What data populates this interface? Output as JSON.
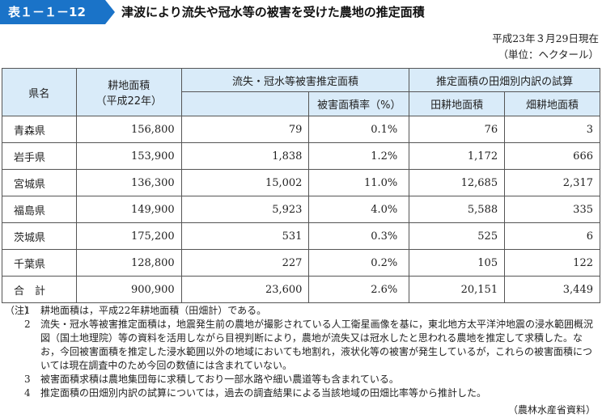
{
  "title": {
    "number": "表１－１－12",
    "text": "津波により流失や冠水等の被害を受けた農地の推定面積"
  },
  "meta": {
    "date": "平成23年３月29日現在",
    "unit": "（単位：ヘクタール）"
  },
  "table": {
    "headers": {
      "pref": "県名",
      "farmland": "耕地面積",
      "farmland_sub": "（平成22年）",
      "damage_group": "流失・冠水等被害推定面積",
      "damage_rate": "被害面積率（%）",
      "breakdown_group": "推定面積の田畑別内訳の試算",
      "paddy": "田耕地面積",
      "field": "畑耕地面積"
    },
    "rows": [
      {
        "pref": "青森県",
        "farmland": "156,800",
        "damage": "79",
        "rate": "0.1%",
        "paddy": "76",
        "field": "3"
      },
      {
        "pref": "岩手県",
        "farmland": "153,900",
        "damage": "1,838",
        "rate": "1.2%",
        "paddy": "1,172",
        "field": "666"
      },
      {
        "pref": "宮城県",
        "farmland": "136,300",
        "damage": "15,002",
        "rate": "11.0%",
        "paddy": "12,685",
        "field": "2,317"
      },
      {
        "pref": "福島県",
        "farmland": "149,900",
        "damage": "5,923",
        "rate": "4.0%",
        "paddy": "5,588",
        "field": "335"
      },
      {
        "pref": "茨城県",
        "farmland": "175,200",
        "damage": "531",
        "rate": "0.3%",
        "paddy": "525",
        "field": "6"
      },
      {
        "pref": "千葉県",
        "farmland": "128,800",
        "damage": "227",
        "rate": "0.2%",
        "paddy": "105",
        "field": "122"
      },
      {
        "pref": "合　計",
        "farmland": "900,900",
        "damage": "23,600",
        "rate": "2.6%",
        "paddy": "20,151",
        "field": "3,449"
      }
    ]
  },
  "notes": {
    "label": "（注）",
    "items": [
      {
        "num": "1",
        "text": "耕地面積は，平成22年耕地面積（田畑計）である。"
      },
      {
        "num": "2",
        "text": "流失・冠水等被害推定面積は，地震発生前の農地が撮影されている人工衛星画像を基に，東北地方太平洋沖地震の浸水範囲概況図（国土地理院）等の資料を活用しながら目視判断により，農地が流失又は冠水したと思われる農地を推定して求積した。なお，今回被害面積を推定した浸水範囲以外の地域においても地割れ，液状化等の被害が発生しているが，これらの被害面積については現在調査中のため今回の数値には含まれていない。"
      },
      {
        "num": "3",
        "text": "被害面積求積は農地集団毎に求積しており一部水路や細い農道等も含まれている。"
      },
      {
        "num": "4",
        "text": "推定面積の田畑別内訳の試算については，過去の調査結果による当該地域の田畑比率等から推計した。"
      }
    ]
  },
  "source": "（農林水産省資料）",
  "colors": {
    "accent": "#1a73c8",
    "header_bg": "#d9ebf9"
  }
}
